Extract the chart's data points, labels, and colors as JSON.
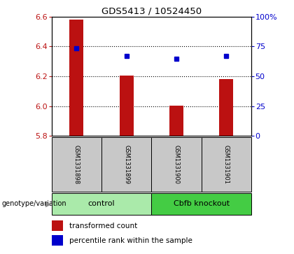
{
  "title": "GDS5413 / 10524450",
  "samples": [
    "GSM1331898",
    "GSM1331899",
    "GSM1331900",
    "GSM1331901"
  ],
  "group_labels": [
    "control",
    "Cbfb knockout"
  ],
  "bar_values": [
    6.58,
    6.205,
    6.003,
    6.18
  ],
  "dot_values": [
    6.385,
    6.335,
    6.315,
    6.337
  ],
  "bar_color": "#bb1111",
  "dot_color": "#0000cc",
  "ymin": 5.8,
  "ymax": 6.6,
  "y_ticks": [
    5.8,
    6.0,
    6.2,
    6.4,
    6.6
  ],
  "y2_ticks": [
    0,
    25,
    50,
    75,
    100
  ],
  "y2_tick_labels": [
    "0",
    "25",
    "50",
    "75",
    "100%"
  ],
  "grid_values": [
    6.0,
    6.2,
    6.4
  ],
  "legend_label_bar": "transformed count",
  "legend_label_dot": "percentile rank within the sample",
  "genotype_label": "genotype/variation",
  "sample_bg": "#c8c8c8",
  "control_bg": "#aaeaaa",
  "knockout_bg": "#44cc44",
  "bar_width": 0.28
}
